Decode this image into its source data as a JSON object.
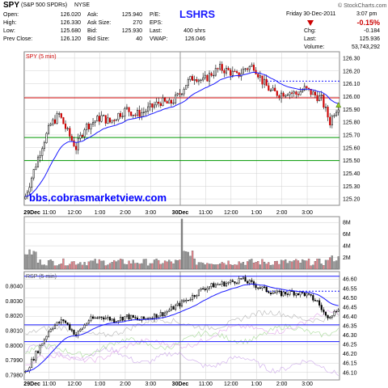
{
  "header": {
    "symbol": "SPY",
    "name": "(S&P 500 SPDRs)",
    "exchange": "NYSE",
    "annotation": "LSHRS",
    "date": "Friday  30-Dec-2011",
    "time": "3:07 pm",
    "copyright": "© StockCharts.com",
    "change_pct": "-0.15%",
    "quote": {
      "open_label": "Open:",
      "open": "126.020",
      "high_label": "High:",
      "high": "126.330",
      "low_label": "Low:",
      "low": "125.680",
      "prev_label": "Prev Close:",
      "prev": "126.120",
      "ask_label": "Ask:",
      "ask": "125.940",
      "asksize_label": "Ask Size:",
      "asksize": "270",
      "bid_label": "Bid:",
      "bid": "125.930",
      "bidsize_label": "Bid Size:",
      "bidsize": "40",
      "pe_label": "P/E:",
      "pe": "",
      "eps_label": "EPS:",
      "eps": "",
      "last_label": "Last:",
      "last": "400 shrs",
      "vwap_label": "VWAP:",
      "vwap": "126.046",
      "chg_label": "Chg:",
      "chg": "-0.184",
      "lastp_label": "Last:",
      "lastp": "125.936",
      "volume_label": "Volume:",
      "volume": "53,743,292"
    }
  },
  "colors": {
    "up": "#000000",
    "down": "#cc0000",
    "ma": "#1a1aff",
    "panel": "#1a1aff",
    "hline_red": "#cc0000",
    "hline_green": "#009900",
    "grid": "#d0d0d0",
    "watermark": "#0000ff"
  },
  "watermark": "bbs.cobrasmarketview.com",
  "chart_data": [
    {
      "type": "candlestick",
      "title": "SPY (5 min)",
      "ylim": [
        125.15,
        126.35
      ],
      "y_ticks": [
        "126.30",
        "126.20",
        "126.10",
        "126.00",
        "125.90",
        "125.80",
        "125.70",
        "125.60",
        "125.50",
        "125.40",
        "125.30",
        "125.20"
      ],
      "x_ticks": [
        "29Dec",
        "11:00",
        "12:00",
        "1:00",
        "2:00",
        "3:00",
        "30Dec",
        "11:00",
        "12:00",
        "1:00",
        "2:00",
        "3:00"
      ],
      "bars": 147,
      "horizontal_lines": [
        {
          "value": 126.12,
          "color": "blue",
          "style": "dotted"
        },
        {
          "value": 125.99,
          "color": "red"
        },
        {
          "value": 125.68,
          "color": "green"
        },
        {
          "value": 125.5,
          "color": "green"
        }
      ],
      "close_path": [
        [
          0,
          125.22
        ],
        [
          4,
          125.42
        ],
        [
          8,
          125.62
        ],
        [
          12,
          125.78
        ],
        [
          16,
          125.86
        ],
        [
          20,
          125.72
        ],
        [
          24,
          125.6
        ],
        [
          28,
          125.76
        ],
        [
          32,
          125.8
        ],
        [
          36,
          125.84
        ],
        [
          40,
          125.8
        ],
        [
          44,
          125.86
        ],
        [
          48,
          125.9
        ],
        [
          52,
          125.86
        ],
        [
          56,
          125.88
        ],
        [
          60,
          125.92
        ],
        [
          64,
          125.96
        ],
        [
          68,
          125.94
        ],
        [
          72,
          126.0
        ],
        [
          76,
          126.1
        ],
        [
          80,
          126.16
        ],
        [
          84,
          126.12
        ],
        [
          88,
          126.18
        ],
        [
          92,
          126.22
        ],
        [
          96,
          126.2
        ],
        [
          100,
          126.16
        ],
        [
          104,
          126.22
        ],
        [
          108,
          126.24
        ],
        [
          112,
          126.12
        ],
        [
          116,
          126.04
        ],
        [
          120,
          126.02
        ],
        [
          124,
          126.04
        ],
        [
          128,
          126.02
        ],
        [
          132,
          126.06
        ],
        [
          136,
          126.02
        ],
        [
          140,
          125.98
        ],
        [
          144,
          125.8
        ],
        [
          146,
          125.88
        ],
        [
          148,
          125.93
        ]
      ]
    },
    {
      "type": "bar",
      "title": "Volume",
      "y_ticks": [
        "8M",
        "6M",
        "4M",
        "2M"
      ],
      "ylim": [
        0,
        9
      ],
      "spike_index": 74,
      "spike_value": 8.6
    },
    {
      "type": "candlestick",
      "title": "RSP (5 min)",
      "y_ticks_left": [
        "0.8040",
        "0.8030",
        "0.8020",
        "0.8010",
        "0.8000",
        "0.7990",
        "0.7980"
      ],
      "y_ticks_right": [
        "46.60",
        "46.55",
        "46.50",
        "46.45",
        "46.40",
        "46.35",
        "46.30",
        "46.25",
        "46.20",
        "46.15",
        "46.10"
      ],
      "ylim": [
        46.06,
        46.64
      ],
      "horizontal_lines": [
        {
          "value": 46.615,
          "color": "blue"
        },
        {
          "value": 46.535,
          "color": "blue",
          "style": "dotted"
        },
        {
          "value": 46.355,
          "color": "blue"
        },
        {
          "value": 46.265,
          "color": "blue"
        }
      ],
      "close_path": [
        [
          0,
          46.1
        ],
        [
          6,
          46.22
        ],
        [
          12,
          46.34
        ],
        [
          18,
          46.38
        ],
        [
          24,
          46.3
        ],
        [
          30,
          46.38
        ],
        [
          36,
          46.4
        ],
        [
          42,
          46.38
        ],
        [
          48,
          46.4
        ],
        [
          54,
          46.38
        ],
        [
          60,
          46.4
        ],
        [
          66,
          46.42
        ],
        [
          72,
          46.46
        ],
        [
          78,
          46.5
        ],
        [
          84,
          46.55
        ],
        [
          90,
          46.57
        ],
        [
          96,
          46.58
        ],
        [
          102,
          46.6
        ],
        [
          108,
          46.57
        ],
        [
          114,
          46.54
        ],
        [
          120,
          46.52
        ],
        [
          126,
          46.53
        ],
        [
          132,
          46.52
        ],
        [
          138,
          46.48
        ],
        [
          142,
          46.4
        ],
        [
          146,
          46.42
        ],
        [
          148,
          46.45
        ]
      ],
      "x_ticks": [
        "29Dec",
        "11:00",
        "12:00",
        "1:00",
        "2:00",
        "3:00",
        "30Dec",
        "11:00",
        "12:00",
        "1:00",
        "2:00",
        "3:00"
      ]
    }
  ]
}
